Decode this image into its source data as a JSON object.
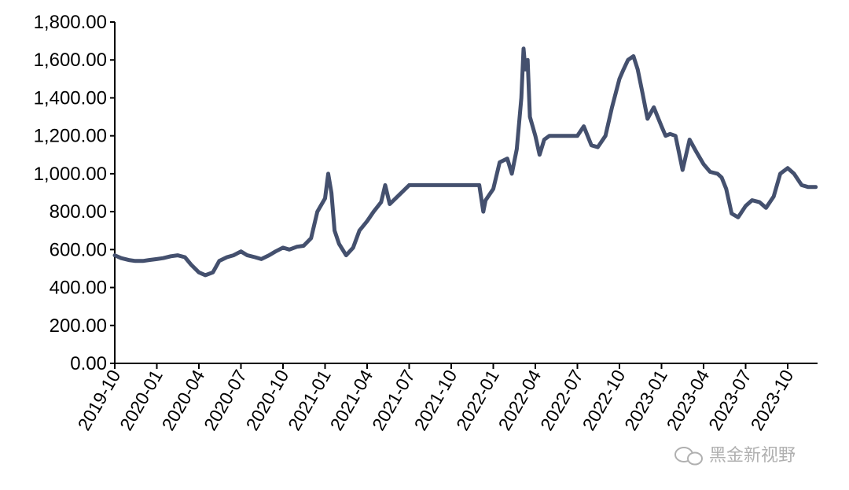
{
  "chart_data": {
    "type": "line",
    "title": "",
    "xlabel": "",
    "ylabel": "",
    "ylim": [
      0,
      1800
    ],
    "yticks": [
      "0.00",
      "200.00",
      "400.00",
      "600.00",
      "800.00",
      "1,000.00",
      "1,200.00",
      "1,400.00",
      "1,600.00",
      "1,800.00"
    ],
    "xticks": [
      "2019-10",
      "2020-01",
      "2020-04",
      "2020-07",
      "2020-10",
      "2021-01",
      "2021-04",
      "2021-07",
      "2021-10",
      "2022-01",
      "2022-04",
      "2022-07",
      "2022-10",
      "2023-01",
      "2023-04",
      "2023-07",
      "2023-10"
    ],
    "legend": "none",
    "grid": false,
    "line_color": "#44506e",
    "series": [
      {
        "x": [
          "2019-10-01",
          "2019-10-15",
          "2019-11-01",
          "2019-11-15",
          "2019-12-01",
          "2019-12-15",
          "2020-01-01",
          "2020-01-15",
          "2020-02-01",
          "2020-02-15",
          "2020-03-01",
          "2020-03-15",
          "2020-04-01",
          "2020-04-15",
          "2020-05-01",
          "2020-05-15",
          "2020-06-01",
          "2020-06-15",
          "2020-07-01",
          "2020-07-15",
          "2020-08-01",
          "2020-08-15",
          "2020-09-01",
          "2020-09-15",
          "2020-10-01",
          "2020-10-15",
          "2020-11-01",
          "2020-11-15",
          "2020-12-01",
          "2020-12-15",
          "2021-01-01",
          "2021-01-08",
          "2021-01-15",
          "2021-01-22",
          "2021-02-01",
          "2021-02-15",
          "2021-03-01",
          "2021-03-15",
          "2021-04-01",
          "2021-04-15",
          "2021-05-01",
          "2021-05-10",
          "2021-05-20",
          "2021-07-01",
          "2021-08-01",
          "2021-10-01",
          "2021-12-01",
          "2021-12-10",
          "2021-12-15",
          "2022-01-01",
          "2022-01-15",
          "2022-02-01",
          "2022-02-10",
          "2022-02-20",
          "2022-03-01",
          "2022-03-06",
          "2022-03-10",
          "2022-03-15",
          "2022-03-20",
          "2022-04-01",
          "2022-04-10",
          "2022-04-20",
          "2022-05-01",
          "2022-06-01",
          "2022-07-01",
          "2022-07-15",
          "2022-08-01",
          "2022-08-15",
          "2022-09-01",
          "2022-09-15",
          "2022-10-01",
          "2022-10-10",
          "2022-10-20",
          "2022-11-01",
          "2022-11-10",
          "2022-11-20",
          "2022-12-01",
          "2022-12-15",
          "2023-01-01",
          "2023-01-10",
          "2023-01-20",
          "2023-02-01",
          "2023-02-15",
          "2023-03-01",
          "2023-03-15",
          "2023-04-01",
          "2023-04-15",
          "2023-05-01",
          "2023-05-10",
          "2023-05-20",
          "2023-06-01",
          "2023-06-15",
          "2023-07-01",
          "2023-07-15",
          "2023-08-01",
          "2023-08-15",
          "2023-09-01",
          "2023-09-15",
          "2023-10-01",
          "2023-10-15",
          "2023-11-01",
          "2023-11-15",
          "2023-12-01"
        ],
        "values": [
          570,
          555,
          545,
          540,
          540,
          545,
          550,
          555,
          565,
          570,
          560,
          520,
          480,
          465,
          480,
          540,
          560,
          570,
          590,
          570,
          560,
          550,
          570,
          590,
          610,
          600,
          615,
          620,
          660,
          800,
          870,
          1000,
          900,
          700,
          630,
          570,
          610,
          700,
          750,
          800,
          850,
          940,
          840,
          940,
          940,
          940,
          940,
          800,
          860,
          920,
          1060,
          1080,
          1000,
          1130,
          1400,
          1660,
          1550,
          1600,
          1300,
          1200,
          1100,
          1180,
          1200,
          1200,
          1200,
          1250,
          1150,
          1140,
          1200,
          1350,
          1500,
          1550,
          1600,
          1620,
          1550,
          1430,
          1290,
          1350,
          1250,
          1200,
          1210,
          1200,
          1020,
          1180,
          1120,
          1050,
          1010,
          1000,
          980,
          920,
          790,
          770,
          830,
          860,
          850,
          820,
          880,
          1000,
          1030,
          1000,
          940,
          930,
          930
        ]
      }
    ],
    "watermark": "黑金新视野"
  }
}
